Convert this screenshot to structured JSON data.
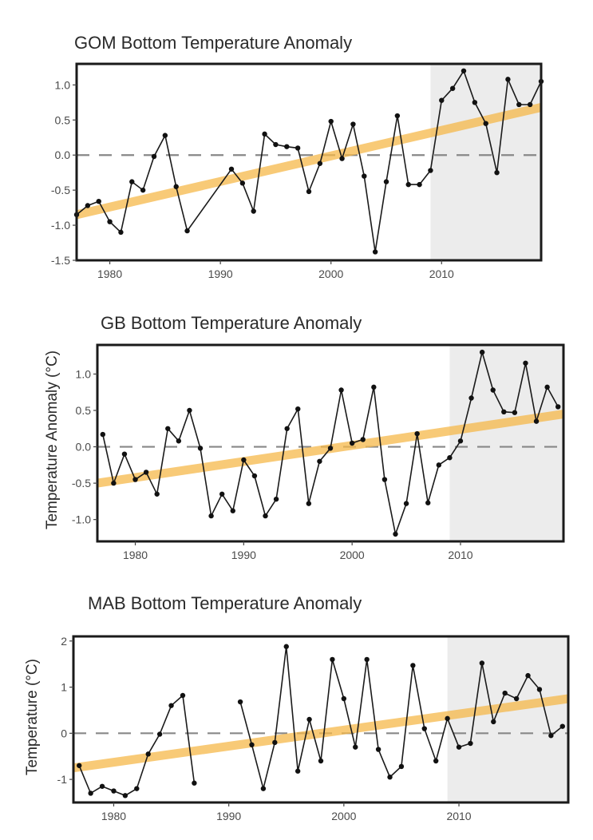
{
  "chart_data": [
    {
      "type": "line",
      "title": "GOM Bottom Temperature Anomaly",
      "xlabel": "",
      "ylabel": "",
      "xlim": [
        1977,
        2019
      ],
      "ylim": [
        -1.5,
        1.3
      ],
      "xticks": [
        "1980",
        "1990",
        "2000",
        "2010"
      ],
      "yticks": [
        "1.0",
        "0.5",
        "0.0",
        "-0.5",
        "-1.0",
        "-1.5"
      ],
      "shaded_region": [
        2009,
        2019
      ],
      "reference_line": 0,
      "trend": [
        [
          1977,
          -0.85
        ],
        [
          2019,
          0.68
        ]
      ],
      "x": [
        1977,
        1978,
        1979,
        1980,
        1981,
        1982,
        1983,
        1984,
        1985,
        1986,
        1987,
        1991,
        1992,
        1993,
        1994,
        1995,
        1996,
        1997,
        1998,
        1999,
        2000,
        2001,
        2002,
        2003,
        2004,
        2005,
        2006,
        2007,
        2008,
        2009,
        2010,
        2011,
        2012,
        2013,
        2014,
        2015,
        2016,
        2017,
        2018,
        2019
      ],
      "y": [
        -0.85,
        -0.72,
        -0.66,
        -0.95,
        -1.1,
        -0.38,
        -0.5,
        -0.02,
        0.28,
        -0.45,
        -1.08,
        -0.2,
        -0.4,
        -0.8,
        0.3,
        0.15,
        0.12,
        0.1,
        -0.52,
        -0.12,
        0.48,
        -0.05,
        0.44,
        -0.3,
        -1.38,
        -0.38,
        0.56,
        -0.42,
        -0.42,
        -0.22,
        0.78,
        0.95,
        1.2,
        0.75,
        0.45,
        -0.25,
        1.08,
        0.72,
        0.72,
        1.05
      ]
    },
    {
      "type": "line",
      "title": "GB Bottom Temperature Anomaly",
      "xlabel": "",
      "ylabel": "Temperature Anomaly (°C)",
      "xlim": [
        1976.5,
        2019.5
      ],
      "ylim": [
        -1.3,
        1.4
      ],
      "xticks": [
        "1980",
        "1990",
        "2000",
        "2010"
      ],
      "yticks": [
        "1.0",
        "0.5",
        "0.0",
        "-0.5",
        "-1.0"
      ],
      "shaded_region": [
        2009,
        2019.5
      ],
      "reference_line": 0,
      "trend": [
        [
          1976.5,
          -0.5
        ],
        [
          2019.5,
          0.45
        ]
      ],
      "x": [
        1977,
        1978,
        1979,
        1980,
        1981,
        1982,
        1983,
        1984,
        1985,
        1986,
        1987,
        1988,
        1989,
        1990,
        1991,
        1992,
        1993,
        1994,
        1995,
        1996,
        1997,
        1998,
        1999,
        2000,
        2001,
        2002,
        2003,
        2004,
        2005,
        2006,
        2007,
        2008,
        2009,
        2010,
        2011,
        2012,
        2013,
        2014,
        2015,
        2016,
        2017,
        2018,
        2019
      ],
      "y": [
        0.17,
        -0.5,
        -0.1,
        -0.45,
        -0.35,
        -0.65,
        0.25,
        0.08,
        0.5,
        -0.02,
        -0.95,
        -0.65,
        -0.88,
        -0.18,
        -0.4,
        -0.95,
        -0.72,
        0.25,
        0.52,
        -0.78,
        -0.2,
        -0.02,
        0.78,
        0.05,
        0.1,
        0.82,
        -0.45,
        -1.2,
        -0.78,
        0.18,
        -0.77,
        -0.25,
        -0.15,
        0.08,
        0.67,
        1.3,
        0.78,
        0.48,
        0.47,
        1.15,
        0.35,
        0.82,
        0.55
      ]
    },
    {
      "type": "line",
      "title": "MAB Bottom Temperature Anomaly",
      "xlabel": "",
      "ylabel": "Temperature (°C)",
      "xlim": [
        1976.5,
        2019.5
      ],
      "ylim": [
        -1.5,
        2.1
      ],
      "xticks": [
        "1980",
        "1990",
        "2000",
        "2010"
      ],
      "yticks": [
        "2",
        "1",
        "0",
        "-1"
      ],
      "shaded_region": [
        2009,
        2019.5
      ],
      "reference_line": 0,
      "trend": [
        [
          1976.5,
          -0.75
        ],
        [
          2019.5,
          0.75
        ]
      ],
      "segments": [
        {
          "x": [
            1977,
            1978,
            1979,
            1980,
            1981,
            1982,
            1983,
            1984,
            1985,
            1986,
            1987
          ],
          "y": [
            -0.7,
            -1.3,
            -1.15,
            -1.25,
            -1.35,
            -1.2,
            -0.45,
            -0.02,
            0.6,
            0.82,
            -1.08
          ]
        },
        {
          "x": [
            1991,
            1992,
            1993,
            1994,
            1995,
            1996,
            1997,
            1998,
            1999,
            2000,
            2001,
            2002,
            2003,
            2004,
            2005,
            2006,
            2007,
            2008,
            2009,
            2010,
            2011,
            2012,
            2013,
            2014,
            2015,
            2016,
            2017,
            2018,
            2019
          ],
          "y": [
            0.68,
            -0.25,
            -1.2,
            -0.2,
            1.88,
            -0.82,
            0.3,
            -0.6,
            1.6,
            0.75,
            -0.3,
            1.6,
            -0.35,
            -0.95,
            -0.72,
            1.47,
            0.1,
            -0.6,
            0.32,
            -0.3,
            -0.22,
            1.52,
            0.25,
            0.87,
            0.75,
            1.25,
            0.95,
            -0.05,
            0.15
          ]
        }
      ]
    }
  ]
}
